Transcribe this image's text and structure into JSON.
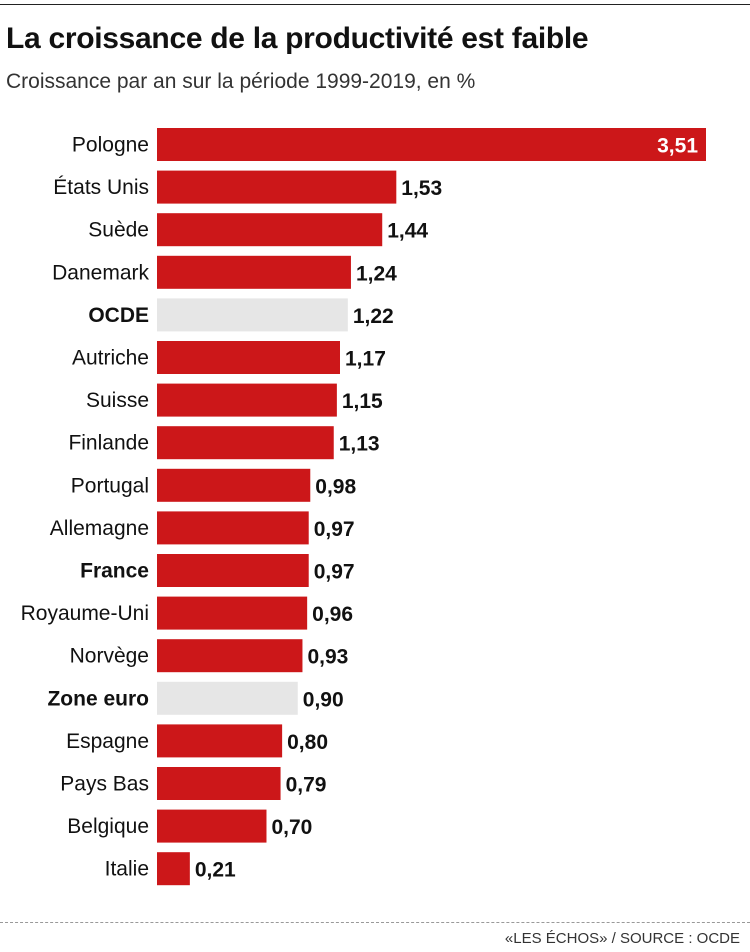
{
  "title": "La croissance de la productivité est faible",
  "subtitle": "Croissance par an sur la période 1999-2019, en %",
  "source": "«LES ÉCHOS» / SOURCE :  OCDE",
  "colors": {
    "bar": "#cc1719",
    "highlight": "#e6e6e6",
    "label_inside": "#ffffff",
    "text": "#111111"
  },
  "chart_data": {
    "type": "bar",
    "orientation": "horizontal",
    "title": "La croissance de la productivité est faible",
    "subtitle": "Croissance par an sur la période 1999-2019, en %",
    "xlim": [
      0,
      3.51
    ],
    "grid": false,
    "legend": "none",
    "categories": [
      "Pologne",
      "États Unis",
      "Suède",
      "Danemark",
      "OCDE",
      "Autriche",
      "Suisse",
      "Finlande",
      "Portugal",
      "Allemagne",
      "France",
      "Royaume-Uni",
      "Norvège",
      "Zone euro",
      "Espagne",
      "Pays Bas",
      "Belgique",
      "Italie"
    ],
    "values": [
      3.51,
      1.53,
      1.44,
      1.24,
      1.22,
      1.17,
      1.15,
      1.13,
      0.98,
      0.97,
      0.97,
      0.96,
      0.93,
      0.9,
      0.8,
      0.79,
      0.7,
      0.21
    ],
    "value_labels": [
      "3,51",
      "1,53",
      "1,44",
      "1,24",
      "1,22",
      "1,17",
      "1,15",
      "1,13",
      "0,98",
      "0,97",
      "0,97",
      "0,96",
      "0,93",
      "0,90",
      "0,80",
      "0,79",
      "0,70",
      "0,21"
    ],
    "highlighted": [
      "OCDE",
      "Zone euro"
    ],
    "bold_categories": [
      "OCDE",
      "France",
      "Zone euro"
    ]
  }
}
